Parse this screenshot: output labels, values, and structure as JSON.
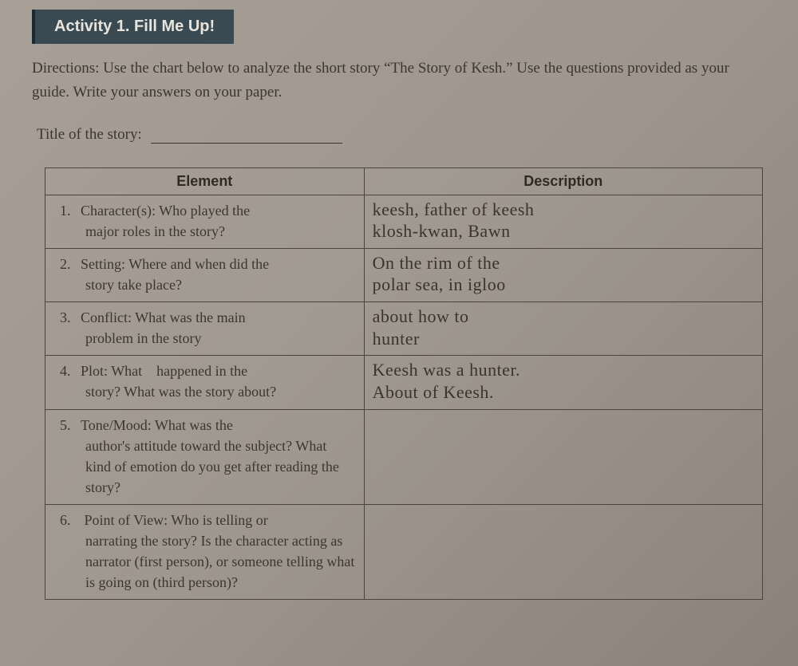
{
  "banner": "Activity 1. Fill Me Up!",
  "directions": "Directions: Use the chart below to analyze the short story “The Story of Kesh.” Use the questions provided as your guide.  Write your answers on your paper.",
  "title_label": "Title of the story:",
  "headers": {
    "element": "Element",
    "description": "Description"
  },
  "rows": [
    {
      "num": "1.",
      "first": "Character(s): Who played the",
      "cont": "major roles in the story?",
      "desc_l1": "keesh, father of keesh",
      "desc_l2": "klosh-kwan, Bawn"
    },
    {
      "num": "2.",
      "first": "Setting: Where and when did  the",
      "cont": "story take place?",
      "desc_l1": "On the rim of the",
      "desc_l2": "polar sea, in igloo"
    },
    {
      "num": "3.",
      "first": "Conflict: What was the main",
      "cont": "problem in the story",
      "desc_l1": "about how to",
      "desc_l2": "hunter"
    },
    {
      "num": "4.",
      "first": "Plot: What    happened in the",
      "cont": "story? What was the story about?",
      "desc_l1": "Keesh was a hunter.",
      "desc_l2": "About of Keesh."
    },
    {
      "num": "5.",
      "first": "Tone/Mood: What was the",
      "cont": "author's attitude toward the subject? What kind of emotion do you get after reading the story?",
      "desc_l1": "",
      "desc_l2": ""
    },
    {
      "num": "6.",
      "first": " Point of View: Who is telling or",
      "cont": "narrating the story? Is the character acting as narrator (first person), or someone telling what is going on (third person)?",
      "desc_l1": "",
      "desc_l2": ""
    }
  ],
  "style": {
    "banner_bg": "#3a4a52",
    "banner_fg": "#e8e4dc",
    "page_bg_from": "#a8a096",
    "page_bg_to": "#8a8278",
    "border_color": "#4a443c",
    "body_text": "#3a3630",
    "handwriting_color": "#3a342c",
    "banner_fontsize": 20,
    "body_fontsize": 19,
    "table_fontsize": 18,
    "handwriting_fontsize": 22
  }
}
